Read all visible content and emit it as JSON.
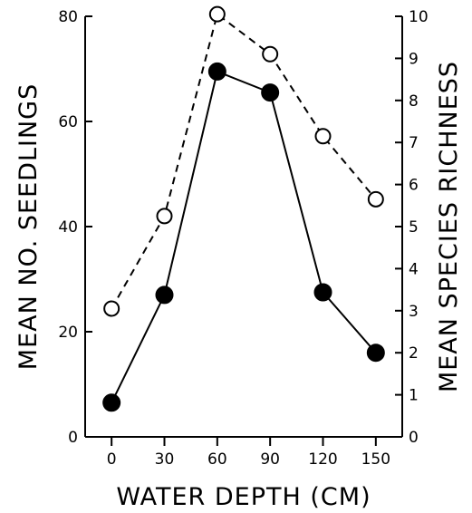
{
  "chart_data": {
    "type": "line",
    "title": "",
    "xlabel": "WATER DEPTH (CM)",
    "x": [
      0,
      30,
      60,
      90,
      120,
      150
    ],
    "xlim": [
      -15,
      165
    ],
    "x_ticks": [
      "0",
      "30",
      "60",
      "90",
      "120",
      "150"
    ],
    "ylabel_left": "MEAN NO. SEEDLINGS",
    "ylim_left": [
      0,
      80
    ],
    "y_ticks_left": [
      "0",
      "20",
      "40",
      "60",
      "80"
    ],
    "ylabel_right": "MEAN SPECIES RICHNESS",
    "ylim_right": [
      0,
      10
    ],
    "y_ticks_right": [
      "0",
      "1",
      "2",
      "3",
      "4",
      "5",
      "6",
      "7",
      "8",
      "9",
      "10"
    ],
    "grid": false,
    "legend": "none",
    "series": [
      {
        "axis": "left",
        "style": "solid line, filled circles",
        "values": [
          6.5,
          27,
          69.5,
          65.5,
          27.5,
          16
        ]
      },
      {
        "axis": "right",
        "style": "dashed line, open circles",
        "values": [
          3.05,
          5.25,
          10.05,
          9.1,
          7.15,
          5.65
        ]
      }
    ]
  }
}
